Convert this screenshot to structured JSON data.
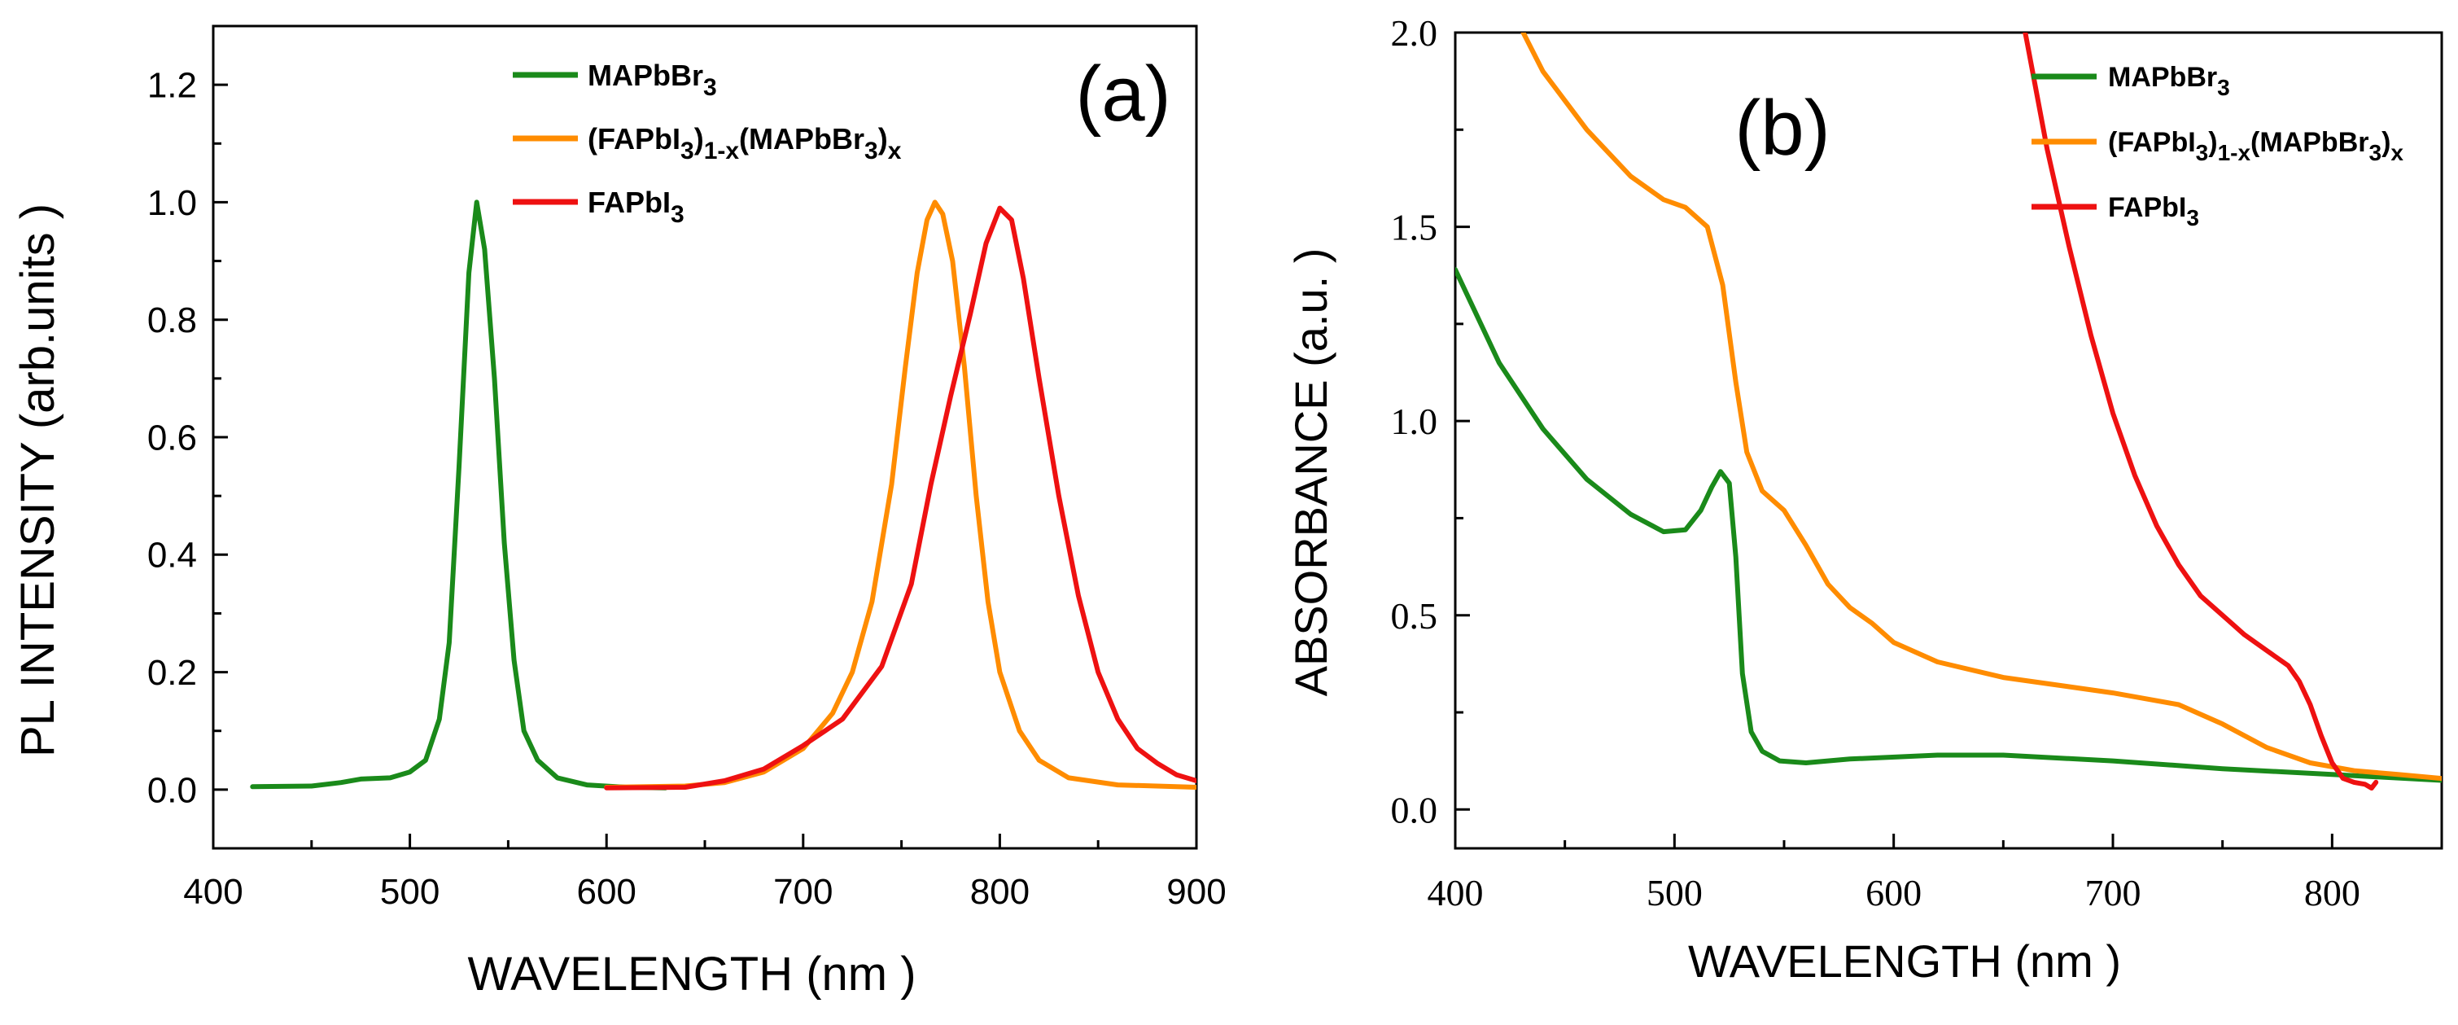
{
  "chart_data": [
    {
      "type": "line",
      "panel_label": "(a)",
      "xlabel": "WAVELENGTH    (nm )",
      "ylabel": "PL INTENSITY    (arb.units )",
      "xlim": [
        400,
        900
      ],
      "ylim": [
        -0.1,
        1.3
      ],
      "xticks": [
        "400",
        "500",
        "600",
        "700",
        "800",
        "900"
      ],
      "yticks": [
        "0.0",
        "0.2",
        "0.4",
        "0.6",
        "0.8",
        "1.0",
        "1.2"
      ],
      "legend_position": "top-center",
      "grid": false,
      "series": [
        {
          "name": "MAPbBr3",
          "legend_parts": [
            {
              "t": "MAPbBr",
              "s": "n"
            },
            {
              "t": "3",
              "s": "sub"
            }
          ],
          "color": "#1a8a1a",
          "points": [
            [
              420,
              0.005
            ],
            [
              450,
              0.006
            ],
            [
              465,
              0.012
            ],
            [
              475,
              0.018
            ],
            [
              490,
              0.02
            ],
            [
              500,
              0.03
            ],
            [
              508,
              0.05
            ],
            [
              515,
              0.12
            ],
            [
              520,
              0.25
            ],
            [
              525,
              0.55
            ],
            [
              530,
              0.88
            ],
            [
              534,
              1.0
            ],
            [
              538,
              0.92
            ],
            [
              543,
              0.7
            ],
            [
              548,
              0.42
            ],
            [
              553,
              0.22
            ],
            [
              558,
              0.1
            ],
            [
              565,
              0.05
            ],
            [
              575,
              0.02
            ],
            [
              590,
              0.008
            ],
            [
              610,
              0.004
            ],
            [
              630,
              0.003
            ]
          ]
        },
        {
          "name": "(FAPbI3)1-x(MAPbBr3)x",
          "legend_parts": [
            {
              "t": "(FAPbI",
              "s": "n"
            },
            {
              "t": "3",
              "s": "sub"
            },
            {
              "t": ")",
              "s": "n"
            },
            {
              "t": "1-x",
              "s": "sub"
            },
            {
              "t": "(MAPbBr",
              "s": "n"
            },
            {
              "t": "3",
              "s": "sub"
            },
            {
              "t": ")",
              "s": "n"
            },
            {
              "t": "x",
              "s": "sub"
            }
          ],
          "color": "#ff8c00",
          "points": [
            [
              600,
              0.004
            ],
            [
              640,
              0.006
            ],
            [
              660,
              0.012
            ],
            [
              680,
              0.03
            ],
            [
              700,
              0.07
            ],
            [
              715,
              0.13
            ],
            [
              725,
              0.2
            ],
            [
              735,
              0.32
            ],
            [
              745,
              0.52
            ],
            [
              752,
              0.72
            ],
            [
              758,
              0.88
            ],
            [
              763,
              0.97
            ],
            [
              767,
              1.0
            ],
            [
              771,
              0.98
            ],
            [
              776,
              0.9
            ],
            [
              782,
              0.72
            ],
            [
              788,
              0.5
            ],
            [
              794,
              0.32
            ],
            [
              800,
              0.2
            ],
            [
              810,
              0.1
            ],
            [
              820,
              0.05
            ],
            [
              835,
              0.02
            ],
            [
              860,
              0.008
            ],
            [
              900,
              0.004
            ]
          ]
        },
        {
          "name": "FAPbI3",
          "legend_parts": [
            {
              "t": "FAPbI",
              "s": "n"
            },
            {
              "t": "3",
              "s": "sub"
            }
          ],
          "color": "#ee1111",
          "points": [
            [
              600,
              0.003
            ],
            [
              640,
              0.004
            ],
            [
              660,
              0.015
            ],
            [
              680,
              0.035
            ],
            [
              700,
              0.075
            ],
            [
              720,
              0.12
            ],
            [
              740,
              0.21
            ],
            [
              755,
              0.35
            ],
            [
              765,
              0.52
            ],
            [
              775,
              0.67
            ],
            [
              785,
              0.81
            ],
            [
              793,
              0.93
            ],
            [
              800,
              0.99
            ],
            [
              806,
              0.97
            ],
            [
              812,
              0.87
            ],
            [
              820,
              0.7
            ],
            [
              830,
              0.5
            ],
            [
              840,
              0.33
            ],
            [
              850,
              0.2
            ],
            [
              860,
              0.12
            ],
            [
              870,
              0.07
            ],
            [
              880,
              0.045
            ],
            [
              890,
              0.025
            ],
            [
              900,
              0.015
            ]
          ]
        }
      ]
    },
    {
      "type": "line",
      "panel_label": "(b)",
      "xlabel": "WAVELENGTH    (nm )",
      "ylabel": "ABSORBANCE    (a.u. )",
      "xlim": [
        400,
        850
      ],
      "ylim": [
        -0.1,
        2.0
      ],
      "xticks": [
        "400",
        "500",
        "600",
        "700",
        "800"
      ],
      "yticks": [
        "0.0",
        "0.5",
        "1.0",
        "1.5",
        "2.0"
      ],
      "legend_position": "top-right",
      "grid": false,
      "series": [
        {
          "name": "MAPbBr3",
          "legend_parts": [
            {
              "t": "MAPbBr",
              "s": "n"
            },
            {
              "t": "3",
              "s": "sub"
            }
          ],
          "color": "#1a8a1a",
          "points": [
            [
              400,
              1.39
            ],
            [
              420,
              1.15
            ],
            [
              440,
              0.98
            ],
            [
              460,
              0.85
            ],
            [
              480,
              0.76
            ],
            [
              495,
              0.715
            ],
            [
              505,
              0.72
            ],
            [
              512,
              0.77
            ],
            [
              517,
              0.83
            ],
            [
              521,
              0.87
            ],
            [
              525,
              0.84
            ],
            [
              528,
              0.65
            ],
            [
              531,
              0.35
            ],
            [
              535,
              0.2
            ],
            [
              540,
              0.15
            ],
            [
              548,
              0.125
            ],
            [
              560,
              0.12
            ],
            [
              580,
              0.13
            ],
            [
              620,
              0.14
            ],
            [
              650,
              0.14
            ],
            [
              700,
              0.125
            ],
            [
              750,
              0.105
            ],
            [
              800,
              0.09
            ],
            [
              850,
              0.075
            ]
          ]
        },
        {
          "name": "(FAPbI3)1-x(MAPbBr3)x",
          "legend_parts": [
            {
              "t": "(FAPbI",
              "s": "n"
            },
            {
              "t": "3",
              "s": "sub"
            },
            {
              "t": ")",
              "s": "n"
            },
            {
              "t": "1-x",
              "s": "sub"
            },
            {
              "t": "(MAPbBr",
              "s": "n"
            },
            {
              "t": "3",
              "s": "sub"
            },
            {
              "t": ")",
              "s": "n"
            },
            {
              "t": "x",
              "s": "sub"
            }
          ],
          "color": "#ff8c00",
          "points": [
            [
              431,
              2.0
            ],
            [
              440,
              1.9
            ],
            [
              460,
              1.75
            ],
            [
              480,
              1.63
            ],
            [
              495,
              1.57
            ],
            [
              505,
              1.55
            ],
            [
              515,
              1.5
            ],
            [
              522,
              1.35
            ],
            [
              528,
              1.1
            ],
            [
              533,
              0.92
            ],
            [
              540,
              0.82
            ],
            [
              550,
              0.77
            ],
            [
              560,
              0.68
            ],
            [
              570,
              0.58
            ],
            [
              580,
              0.52
            ],
            [
              590,
              0.48
            ],
            [
              600,
              0.43
            ],
            [
              620,
              0.38
            ],
            [
              650,
              0.34
            ],
            [
              700,
              0.3
            ],
            [
              730,
              0.27
            ],
            [
              750,
              0.22
            ],
            [
              770,
              0.16
            ],
            [
              790,
              0.12
            ],
            [
              810,
              0.1
            ],
            [
              830,
              0.09
            ],
            [
              850,
              0.08
            ]
          ]
        },
        {
          "name": "FAPbI3",
          "legend_parts": [
            {
              "t": "FAPbI",
              "s": "n"
            },
            {
              "t": "3",
              "s": "sub"
            }
          ],
          "color": "#ee1111",
          "points": [
            [
              660,
              2.0
            ],
            [
              670,
              1.7
            ],
            [
              680,
              1.45
            ],
            [
              690,
              1.22
            ],
            [
              700,
              1.02
            ],
            [
              710,
              0.86
            ],
            [
              720,
              0.73
            ],
            [
              730,
              0.63
            ],
            [
              740,
              0.55
            ],
            [
              750,
              0.5
            ],
            [
              760,
              0.45
            ],
            [
              770,
              0.41
            ],
            [
              780,
              0.37
            ],
            [
              785,
              0.33
            ],
            [
              790,
              0.27
            ],
            [
              795,
              0.19
            ],
            [
              800,
              0.12
            ],
            [
              805,
              0.08
            ],
            [
              810,
              0.07
            ],
            [
              815,
              0.065
            ],
            [
              818,
              0.055
            ],
            [
              820,
              0.07
            ]
          ]
        }
      ]
    }
  ]
}
